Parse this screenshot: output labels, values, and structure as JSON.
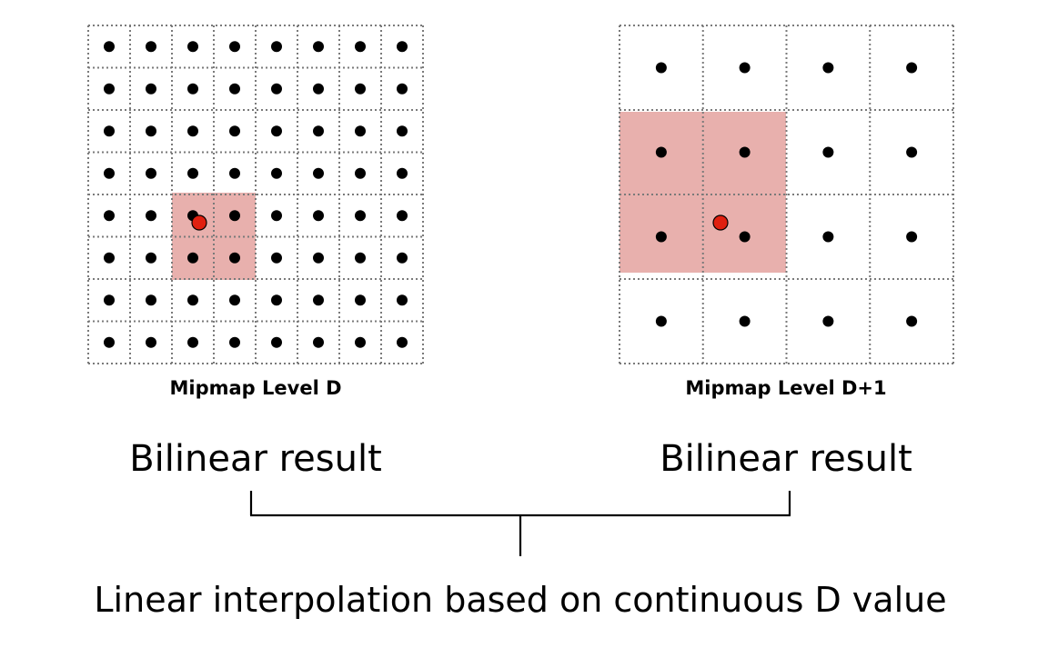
{
  "level_d": {
    "label": "Mipmap Level D",
    "cells": 8,
    "bilinear_cells": {
      "col_start": 2,
      "row_start": 4,
      "size": 2
    }
  },
  "level_d1": {
    "label": "Mipmap Level D+1",
    "cells": 4,
    "bilinear_cells": {
      "col_start": 0,
      "row_start": 1,
      "size": 2
    }
  },
  "left_result": "Bilinear result",
  "right_result": "Bilinear result",
  "interpolation": "Linear interpolation based on continuous D value",
  "colors": {
    "highlight": "#e8b0ad",
    "sample_point": "#e02010",
    "texel_dot": "#000000",
    "grid_line": "#7a7a7a"
  }
}
